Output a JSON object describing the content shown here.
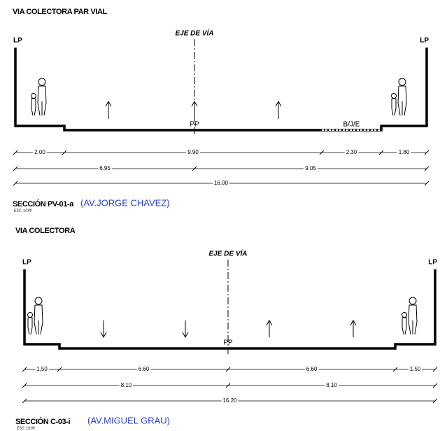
{
  "sections": [
    {
      "heading": "VIA COLECTORA PAR VIAL",
      "axis_label": "EJE DE VÍA",
      "left_limit": "LP",
      "right_limit": "LP",
      "pavement_label": "PP",
      "bike_label": "B/J/E",
      "dimension_rows": [
        [
          "2.00",
          "9.90",
          "2.30",
          "1.80"
        ],
        [
          "6.95",
          "9.05"
        ],
        [
          "16.00"
        ]
      ],
      "section_code": "SECCIÓN PV-01-a",
      "scale": "ESC: 1/100",
      "street": "(AV.JORGE CHAVEZ)"
    },
    {
      "heading": "VIA COLECTORA",
      "axis_label": "EJE DE VÍA",
      "left_limit": "LP",
      "right_limit": "LP",
      "pavement_label": "PP",
      "dimension_rows": [
        [
          "1.50",
          "6.60",
          "6.60",
          "1.50"
        ],
        [
          "8.10",
          "8.10"
        ],
        [
          "16.20"
        ]
      ],
      "section_code": "SECCIÓN C-03-i",
      "scale": "ESC: 1/100",
      "street": "(AV.MIGUEL GRAU)"
    }
  ]
}
